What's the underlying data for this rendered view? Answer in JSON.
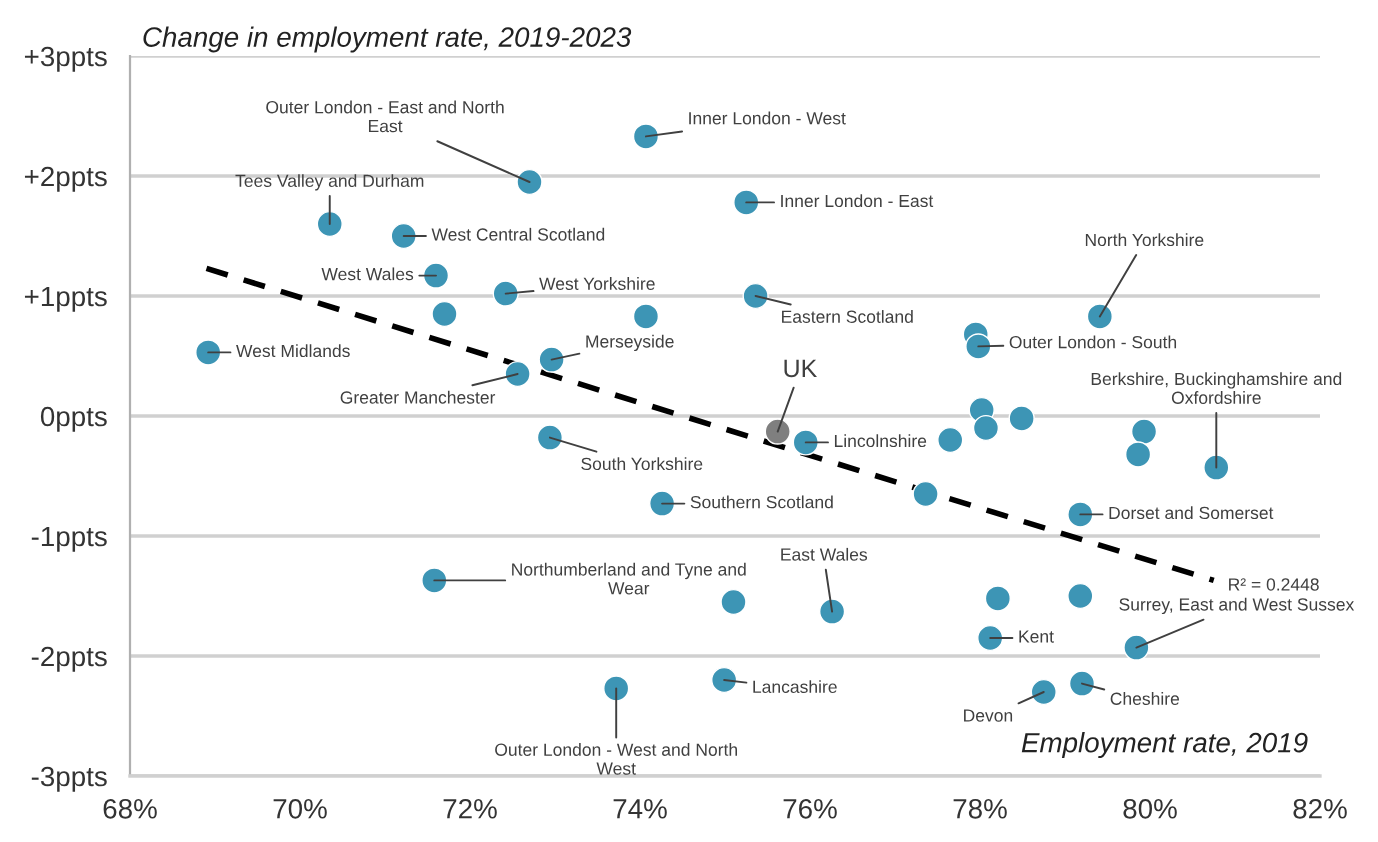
{
  "chart_data": {
    "type": "scatter",
    "ylabel": "Change in employment rate, 2019-2023",
    "xlabel": "Employment rate, 2019",
    "xlim": [
      68,
      82
    ],
    "ylim": [
      -3,
      3
    ],
    "xticks": [
      {
        "value": 68,
        "label": "68%"
      },
      {
        "value": 70,
        "label": "70%"
      },
      {
        "value": 72,
        "label": "72%"
      },
      {
        "value": 74,
        "label": "74%"
      },
      {
        "value": 76,
        "label": "76%"
      },
      {
        "value": 78,
        "label": "78%"
      },
      {
        "value": 80,
        "label": "80%"
      },
      {
        "value": 82,
        "label": "82%"
      }
    ],
    "yticks": [
      {
        "value": -3,
        "label": "-3ppts"
      },
      {
        "value": -2,
        "label": "-2ppts"
      },
      {
        "value": -1,
        "label": "-1ppts"
      },
      {
        "value": 0,
        "label": "0ppts"
      },
      {
        "value": 1,
        "label": "+1ppts"
      },
      {
        "value": 2,
        "label": "+2ppts"
      },
      {
        "value": 3,
        "label": "+3ppts"
      }
    ],
    "grid": "y",
    "marker": "circle",
    "series": [
      {
        "color": "#3d95b5",
        "x": [
          68.92,
          70.35,
          71.22,
          71.6,
          71.7,
          72.42,
          72.7,
          72.96,
          72.56,
          72.94,
          74.07,
          74.07,
          74.26,
          71.58,
          73.72,
          74.99,
          75.1,
          75.25,
          75.36,
          75.95,
          76.26,
          77.65,
          77.36,
          77.95,
          77.98,
          78.02,
          78.07,
          78.49,
          78.21,
          78.12,
          79.18,
          78.75,
          79.2,
          79.18,
          79.93,
          79.86,
          80.78,
          79.84,
          79.41
        ],
        "values": [
          0.53,
          1.6,
          1.5,
          1.17,
          0.85,
          1.02,
          1.95,
          0.47,
          0.35,
          -0.18,
          2.33,
          0.83,
          -0.73,
          -1.37,
          -2.27,
          -2.2,
          -1.55,
          1.78,
          1.0,
          -0.22,
          -1.63,
          -0.2,
          -0.65,
          0.68,
          0.58,
          0.05,
          -0.1,
          -0.02,
          -1.52,
          -1.85,
          -1.5,
          -2.3,
          -2.23,
          -0.82,
          -0.13,
          -0.32,
          -0.43,
          -1.93,
          0.83
        ]
      },
      {
        "name": "UK",
        "color": "#7f7f7f",
        "x": [
          75.62
        ],
        "values": [
          -0.13
        ]
      },
      {
        "type": "line",
        "color": "#000000",
        "line_style": "dashed",
        "marker": "none",
        "x": [
          68.9,
          80.75
        ],
        "values": [
          1.23,
          -1.37
        ]
      }
    ],
    "annotations": [
      {
        "text": "Outer London - East and North\nEast",
        "x": 72.7,
        "y": 1.95
      },
      {
        "text": "Inner London - West",
        "x": 74.07,
        "y": 2.33
      },
      {
        "text": "Tees Valley and Durham",
        "x": 70.35,
        "y": 1.6
      },
      {
        "text": "West Central Scotland",
        "x": 71.22,
        "y": 1.5
      },
      {
        "text": "West Wales",
        "x": 71.6,
        "y": 1.17
      },
      {
        "text": "West Yorkshire",
        "x": 72.42,
        "y": 1.02
      },
      {
        "text": "West Midlands",
        "x": 68.92,
        "y": 0.53
      },
      {
        "text": "Merseyside",
        "x": 72.96,
        "y": 0.47
      },
      {
        "text": "Greater Manchester",
        "x": 72.56,
        "y": 0.35
      },
      {
        "text": "Inner London - East",
        "x": 75.25,
        "y": 1.78
      },
      {
        "text": "Eastern Scotland",
        "x": 75.36,
        "y": 1.0
      },
      {
        "text": "South Yorkshire",
        "x": 72.94,
        "y": -0.18
      },
      {
        "text": "Southern Scotland",
        "x": 74.26,
        "y": -0.73
      },
      {
        "text": "Northumberland and Tyne and\nWear",
        "x": 71.58,
        "y": -1.37
      },
      {
        "text": "Outer London - West and North\nWest",
        "x": 73.72,
        "y": -2.27
      },
      {
        "text": "Lancashire",
        "x": 74.99,
        "y": -2.2
      },
      {
        "text": "East Wales",
        "x": 76.26,
        "y": -1.63
      },
      {
        "text": "Lincolnshire",
        "x": 75.95,
        "y": -0.22
      },
      {
        "text": "Outer London - South",
        "x": 77.98,
        "y": 0.58
      },
      {
        "text": "North Yorkshire",
        "x": 79.41,
        "y": 0.83
      },
      {
        "text": "Berkshire, Buckinghamshire and\nOxfordshire",
        "x": 80.78,
        "y": -0.43
      },
      {
        "text": "Dorset and Somerset",
        "x": 79.18,
        "y": -0.82
      },
      {
        "text": "Kent",
        "x": 78.12,
        "y": -1.85
      },
      {
        "text": "Surrey, East and West Sussex",
        "x": 79.84,
        "y": -1.93
      },
      {
        "text": "Devon",
        "x": 78.75,
        "y": -2.3
      },
      {
        "text": "Cheshire",
        "x": 79.2,
        "y": -2.23
      },
      {
        "text": "R² = 0.2448",
        "x": 80.75,
        "y": -1.37
      }
    ]
  }
}
